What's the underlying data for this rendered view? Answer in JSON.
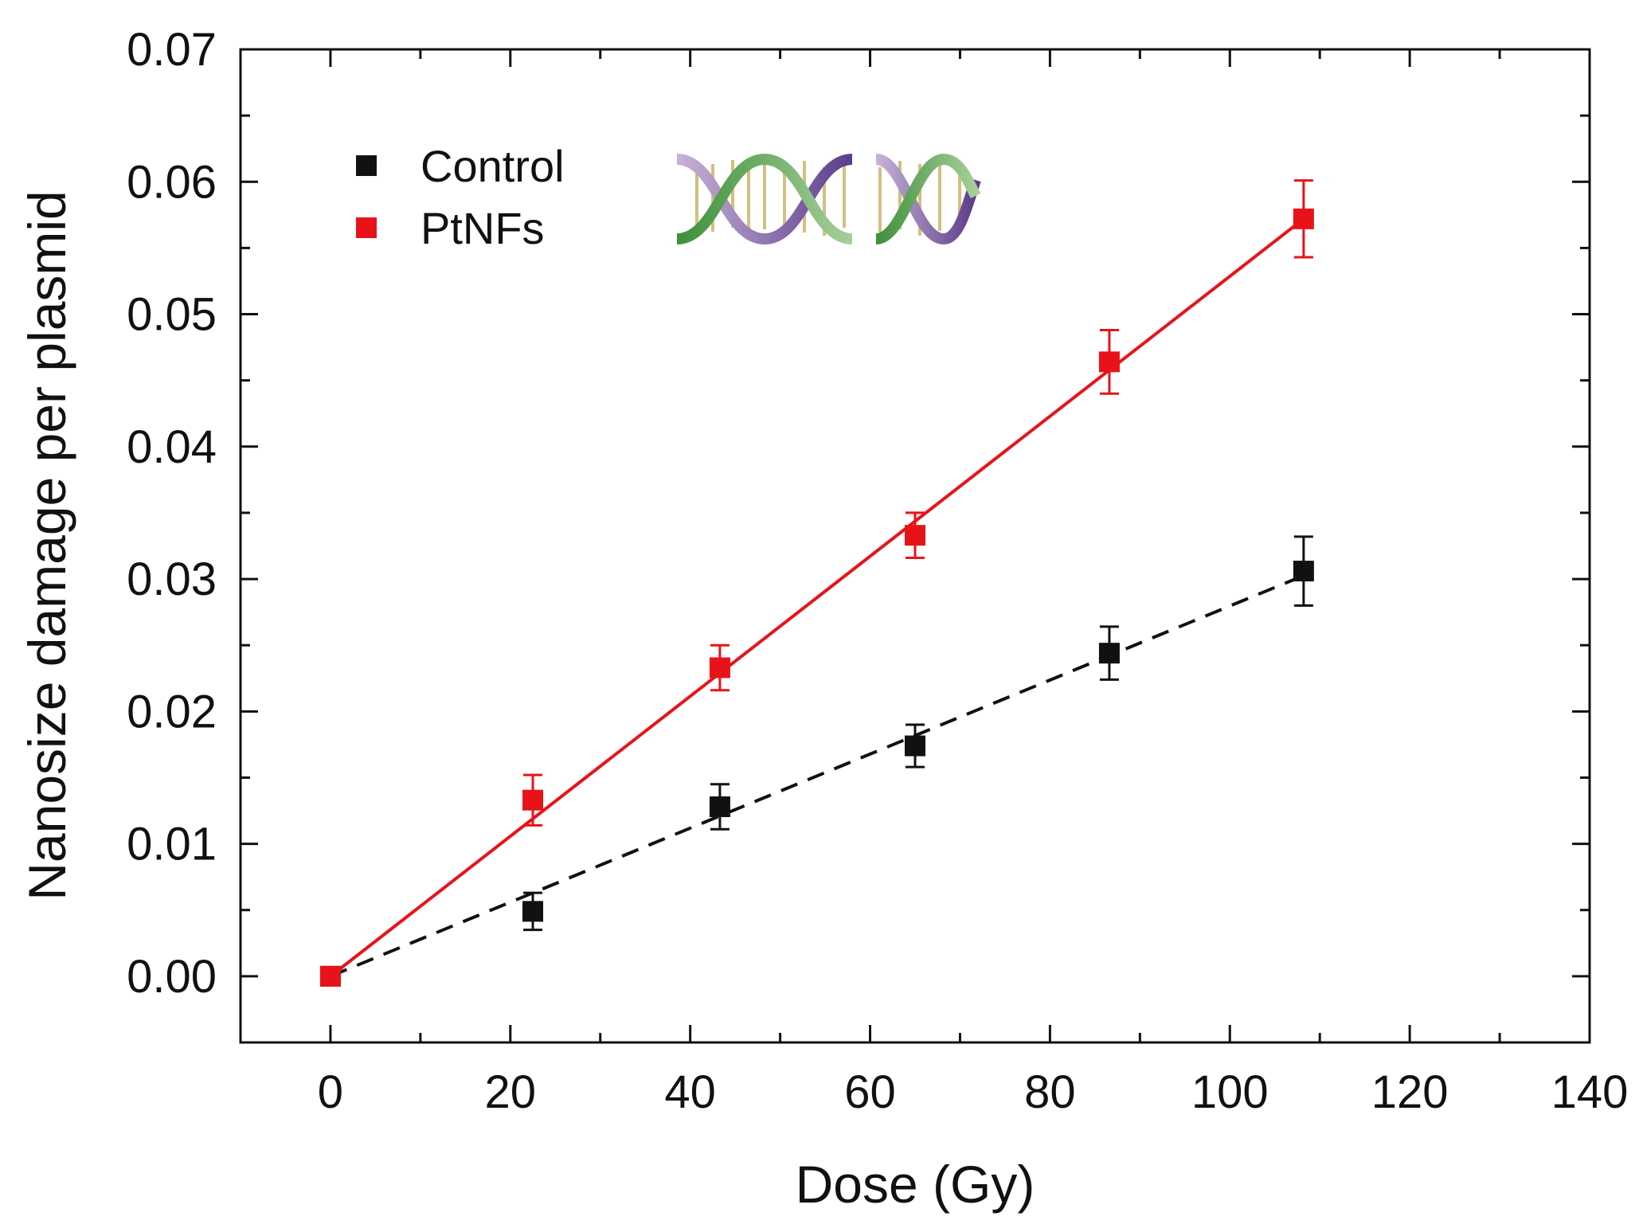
{
  "chart_data": {
    "type": "scatter",
    "title": "",
    "xlabel": "Dose (Gy)",
    "ylabel": "Nanosize damage per plasmid",
    "xlim": [
      -10,
      140
    ],
    "ylim": [
      -0.005,
      0.07
    ],
    "x_ticks": [
      "0",
      "20",
      "40",
      "60",
      "80",
      "100",
      "120",
      "140"
    ],
    "y_ticks": [
      "0.00",
      "0.01",
      "0.02",
      "0.03",
      "0.04",
      "0.05",
      "0.06",
      "0.07"
    ],
    "legend_position": "top-left",
    "series": [
      {
        "name": "Control",
        "color": "#111111",
        "marker": "square",
        "fit_line": "dashed",
        "fit": [
          [
            0,
            0.0
          ],
          [
            108,
            0.0302
          ]
        ],
        "points": [
          {
            "x": 0,
            "y": 0.0,
            "err": 0.0
          },
          {
            "x": 22.5,
            "y": 0.0049,
            "err": 0.0014
          },
          {
            "x": 43.3,
            "y": 0.0128,
            "err": 0.0017
          },
          {
            "x": 65.0,
            "y": 0.0174,
            "err": 0.0016
          },
          {
            "x": 86.6,
            "y": 0.0244,
            "err": 0.002
          },
          {
            "x": 108.2,
            "y": 0.0306,
            "err": 0.0026
          }
        ]
      },
      {
        "name": "PtNFs",
        "color": "#e8131a",
        "marker": "square",
        "fit_line": "solid",
        "fit": [
          [
            0,
            0.0
          ],
          [
            108.2,
            0.0572
          ]
        ],
        "points": [
          {
            "x": 0,
            "y": 0.0,
            "err": 0.0
          },
          {
            "x": 22.5,
            "y": 0.0133,
            "err": 0.0019
          },
          {
            "x": 43.3,
            "y": 0.0233,
            "err": 0.0017
          },
          {
            "x": 65.0,
            "y": 0.0333,
            "err": 0.0017
          },
          {
            "x": 86.6,
            "y": 0.0464,
            "err": 0.0024
          },
          {
            "x": 108.2,
            "y": 0.0572,
            "err": 0.0029
          }
        ]
      }
    ],
    "inset_icon": "dna-double-helix-icon"
  }
}
